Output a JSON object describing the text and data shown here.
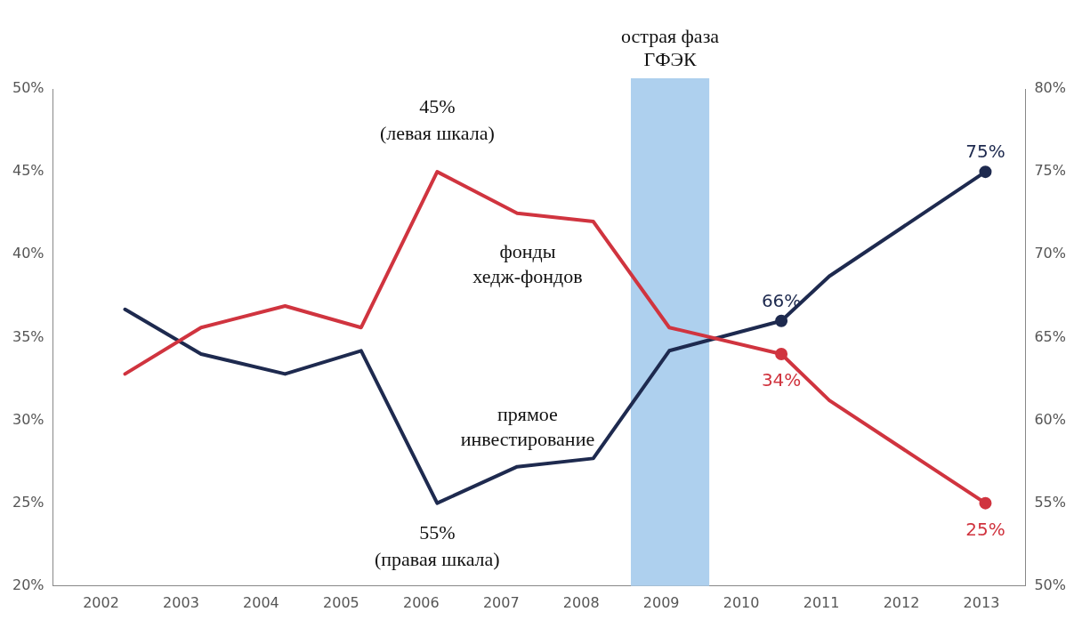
{
  "chart_data": {
    "type": "line",
    "x": [
      2002.3,
      2003.25,
      2004.3,
      2005.25,
      2006.2,
      2007.2,
      2008.15,
      2009.1,
      2010.5,
      2011.1,
      2013.05
    ],
    "series": [
      {
        "name": "фонды хедж-фондов",
        "color": "#d0343f",
        "values": [
          32.8,
          35.6,
          36.9,
          35.6,
          45,
          42.5,
          42,
          35.6,
          34,
          31.2,
          25
        ],
        "value_labels": [
          null,
          null,
          null,
          null,
          null,
          null,
          null,
          null,
          "34%",
          null,
          "25%"
        ]
      },
      {
        "name": "прямое инвестирование",
        "color": "#1e2a4f",
        "axis": "y2",
        "values": [
          66.7,
          64,
          62.8,
          64.2,
          55,
          57.2,
          57.7,
          64.2,
          66,
          68.7,
          75
        ],
        "value_labels": [
          null,
          null,
          null,
          null,
          null,
          null,
          null,
          null,
          "66%",
          null,
          "75%"
        ]
      }
    ],
    "xlim": [
      2001.4,
      2013.55
    ],
    "xticks": [
      2002,
      2003,
      2004,
      2005,
      2006,
      2007,
      2008,
      2009,
      2010,
      2011,
      2012,
      2013
    ],
    "ylim": [
      20,
      50
    ],
    "yticks": [
      {
        "value": 20,
        "label": "20%"
      },
      {
        "value": 25,
        "label": "25%"
      },
      {
        "value": 30,
        "label": "30%"
      },
      {
        "value": 35,
        "label": "35%"
      },
      {
        "value": 40,
        "label": "40%"
      },
      {
        "value": 45,
        "label": "45%"
      },
      {
        "value": 50,
        "label": "50%"
      }
    ],
    "y2lim": [
      50,
      80
    ],
    "y2ticks": [
      {
        "value": 50,
        "label": "50%"
      },
      {
        "value": 55,
        "label": "55%"
      },
      {
        "value": 60,
        "label": "60%"
      },
      {
        "value": 65,
        "label": "65%"
      },
      {
        "value": 70,
        "label": "70%"
      },
      {
        "value": 75,
        "label": "75%"
      },
      {
        "value": 80,
        "label": "80%"
      }
    ],
    "bands": [
      {
        "axis": "x",
        "from": 2008.62,
        "to": 2009.6,
        "label": "острая фаза\nГФЭК",
        "color": "#aed0ee"
      }
    ],
    "annotations": [
      {
        "text": "45%\n(левая шкала)",
        "x": 2006.2,
        "y": 45
      },
      {
        "text": "55%\n(правая шкала)",
        "x": 2006.2,
        "y": 25
      }
    ],
    "line_style": "solid",
    "grid": false,
    "legend": false
  }
}
